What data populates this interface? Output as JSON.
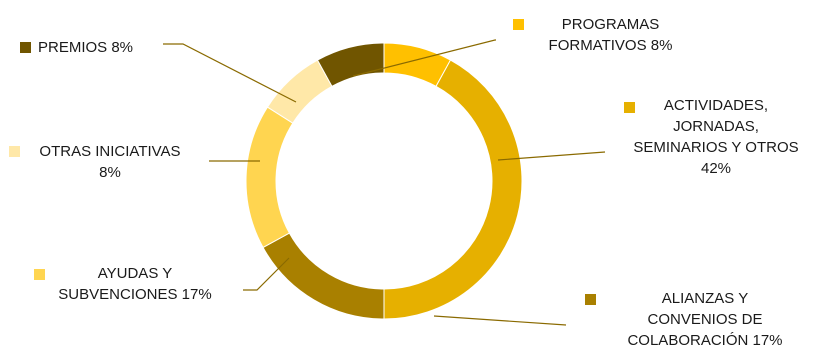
{
  "chart_data": {
    "type": "pie",
    "variant": "donut",
    "title": "",
    "series": [
      {
        "categories": [
          "PROGRAMAS FORMATIVOS",
          "ACTIVIDADES, JORNADAS, SEMINARIOS Y OTROS",
          "ALIANZAS Y CONVENIOS DE COLABORACIÓN",
          "AYUDAS Y SUBVENCIONES",
          "OTRAS INICIATIVAS",
          "PREMIOS"
        ],
        "values": [
          8,
          42,
          17,
          17,
          8,
          8
        ],
        "unit": "%"
      }
    ],
    "colors": [
      "#FFC000",
      "#E6B000",
      "#A98000",
      "#FFD550",
      "#FFE8A8",
      "#705500"
    ],
    "legend": "none",
    "data_labels": [
      {
        "lines": [
          "PROGRAMAS",
          "FORMATIVOS 8%"
        ]
      },
      {
        "lines": [
          "ACTIVIDADES,",
          "JORNADAS,",
          "SEMINARIOS Y OTROS",
          "42%"
        ]
      },
      {
        "lines": [
          "ALIANZAS Y",
          "CONVENIOS DE",
          "COLABORACIÓN 17%"
        ]
      },
      {
        "lines": [
          "AYUDAS Y",
          "SUBVENCIONES 17%"
        ]
      },
      {
        "lines": [
          "OTRAS INICIATIVAS",
          "8%"
        ]
      },
      {
        "lines": [
          "PREMIOS 8%"
        ]
      }
    ]
  }
}
